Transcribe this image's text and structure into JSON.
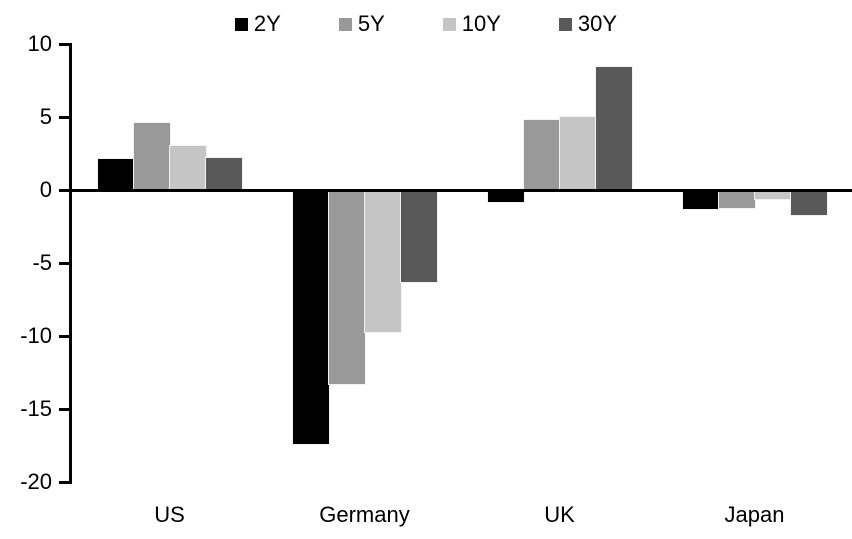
{
  "chart_data": {
    "type": "bar",
    "title": "",
    "categories": [
      "US",
      "Germany",
      "UK",
      "Japan"
    ],
    "series": [
      {
        "name": "2Y",
        "color": "#000000",
        "values": [
          2.1,
          -17.4,
          -0.8,
          -1.3
        ]
      },
      {
        "name": "5Y",
        "color": "#999999",
        "values": [
          4.6,
          -13.3,
          4.8,
          -1.2
        ]
      },
      {
        "name": "10Y",
        "color": "#c5c5c5",
        "values": [
          3.0,
          -9.7,
          5.0,
          -0.6
        ]
      },
      {
        "name": "30Y",
        "color": "#595959",
        "values": [
          2.2,
          -6.3,
          8.4,
          -1.7
        ]
      }
    ],
    "ylim": [
      -20,
      10
    ],
    "yticks": [
      10,
      5,
      0,
      -5,
      -10,
      -15,
      -20
    ],
    "grid": false,
    "legend_position": "top",
    "axis_color": "#000000",
    "background": "#ffffff"
  }
}
